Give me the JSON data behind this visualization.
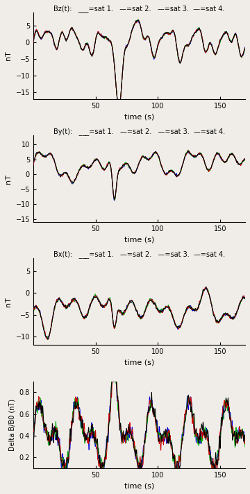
{
  "title_bz": "Bz(t):  __=sat 1.  —=sat 2.  —=sat 3.—=sat 4.",
  "title_by": "By(t):  __=sat 1.  —=sat 2.  —=sat 3.— =sat 4.",
  "title_bx": "Bx(t):  __=sat 1.  —=sat 2.  —=sat 3.—=sat 4.",
  "colors": [
    "black",
    "#cc0000",
    "#00aa00",
    "#0000dd"
  ],
  "xlabel": "time (s)",
  "ylabel_b": "nT",
  "ylabel_delta": "Delta B/B0 (nT)",
  "xlim": [
    0,
    170
  ],
  "xticks": [
    50,
    100,
    150
  ],
  "ylim_bz": [
    -17,
    9
  ],
  "yticks_bz": [
    -15,
    -10,
    -5,
    0,
    5
  ],
  "ylim_by": [
    -16,
    13
  ],
  "yticks_by": [
    -15,
    -10,
    -5,
    0,
    5,
    10
  ],
  "ylim_bx": [
    -12,
    8
  ],
  "yticks_bx": [
    -10,
    -5,
    0,
    5
  ],
  "ylim_delta": [
    0.1,
    0.9
  ],
  "yticks_delta": [
    0.2,
    0.4,
    0.6,
    0.8
  ],
  "bg_color": "#f0ede8",
  "seed": 42,
  "n_points": 1700,
  "t_max": 170
}
